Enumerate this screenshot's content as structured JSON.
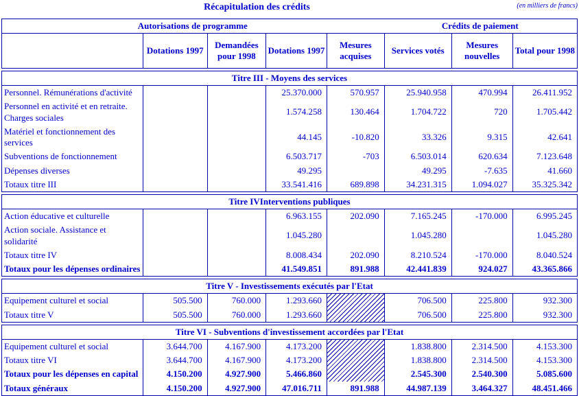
{
  "colors": {
    "text": "#0000cc",
    "border": "#0000aa"
  },
  "header": {
    "title": "Récapitulation des crédits",
    "unit": "(en milliers de francs)"
  },
  "table": {
    "group_headers": [
      "Autorisations de programme",
      "Crédits de paiement"
    ],
    "columns": [
      "",
      "Dotations 1997",
      "Demandées pour 1998",
      "Dotations 1997",
      "Mesures acquises",
      "Services votés",
      "Mesures nouvelles",
      "Total pour 1998"
    ],
    "sections": [
      {
        "title": "Titre III - Moyens des services",
        "rows": [
          {
            "label": "Personnel. Rémunérations d'activité",
            "bold": false,
            "values": [
              "",
              "",
              "25.370.000",
              "570.957",
              "25.940.958",
              "470.994",
              "26.411.952"
            ]
          },
          {
            "label": "Personnel en activité et en retraite. Charges sociales",
            "bold": false,
            "values": [
              "",
              "",
              "1.574.258",
              "130.464",
              "1.704.722",
              "720",
              "1.705.442"
            ]
          },
          {
            "label": "Matériel et fonctionnement des services",
            "bold": false,
            "values": [
              "",
              "",
              "44.145",
              "-10.820",
              "33.326",
              "9.315",
              "42.641"
            ]
          },
          {
            "label": "Subventions de fonctionnement",
            "bold": false,
            "values": [
              "",
              "",
              "6.503.717",
              "-703",
              "6.503.014",
              "620.634",
              "7.123.648"
            ]
          },
          {
            "label": "Dépenses diverses",
            "bold": false,
            "values": [
              "",
              "",
              "49.295",
              "",
              "49.295",
              "-7.635",
              "41.660"
            ]
          },
          {
            "label": "Totaux titre III",
            "bold": false,
            "values": [
              "",
              "",
              "33.541.416",
              "689.898",
              "34.231.315",
              "1.094.027",
              "35.325.342"
            ]
          }
        ]
      },
      {
        "title": "Titre IVInterventions publiques",
        "rows": [
          {
            "label": "Action éducative et culturelle",
            "bold": false,
            "values": [
              "",
              "",
              "6.963.155",
              "202.090",
              "7.165.245",
              "-170.000",
              "6.995.245"
            ]
          },
          {
            "label": "Action sociale. Assistance et solidarité",
            "bold": false,
            "values": [
              "",
              "",
              "1.045.280",
              "",
              "1.045.280",
              "",
              "1.045.280"
            ]
          },
          {
            "label": "Totaux titre IV",
            "bold": false,
            "values": [
              "",
              "",
              "8.008.434",
              "202.090",
              "8.210.524",
              "-170.000",
              "8.040.524"
            ]
          },
          {
            "label": "Totaux pour les dépenses ordinaires",
            "bold": true,
            "values": [
              "",
              "",
              "41.549.851",
              "891.988",
              "42.441.839",
              "924.027",
              "43.365.866"
            ]
          }
        ]
      },
      {
        "title": "Titre V - Investissements exécutés par l'Etat",
        "hatch": {
          "col": 3,
          "start": 0,
          "span": 2
        },
        "rows": [
          {
            "label": "Equipement culturel et social",
            "bold": false,
            "values": [
              "505.500",
              "760.000",
              "1.293.660",
              "",
              "706.500",
              "225.800",
              "932.300"
            ]
          },
          {
            "label": "Totaux titre V",
            "bold": false,
            "values": [
              "505.500",
              "760.000",
              "1.293.660",
              "",
              "706.500",
              "225.800",
              "932.300"
            ]
          }
        ]
      },
      {
        "title": "Titre VI - Subventions d'investissement accordées par l'Etat",
        "hatch": {
          "col": 3,
          "start": 0,
          "span": 3
        },
        "rows": [
          {
            "label": "Equipement culturel et social",
            "bold": false,
            "values": [
              "3.644.700",
              "4.167.900",
              "4.173.200",
              "",
              "1.838.800",
              "2.314.500",
              "4.153.300"
            ]
          },
          {
            "label": "Totaux titre VI",
            "bold": false,
            "values": [
              "3.644.700",
              "4.167.900",
              "4.173.200",
              "",
              "1.838.800",
              "2.314.500",
              "4.153.300"
            ]
          },
          {
            "label": "Totaux pour les dépenses en capital",
            "bold": true,
            "values": [
              "4.150.200",
              "4.927.900",
              "5.466.860",
              "",
              "2.545.300",
              "2.540.300",
              "5.085.600"
            ]
          },
          {
            "label": "Totaux généraux",
            "bold": true,
            "values": [
              "4.150.200",
              "4.927.900",
              "47.016.711",
              "891.988",
              "44.987.139",
              "3.464.327",
              "48.451.466"
            ]
          }
        ]
      }
    ]
  }
}
